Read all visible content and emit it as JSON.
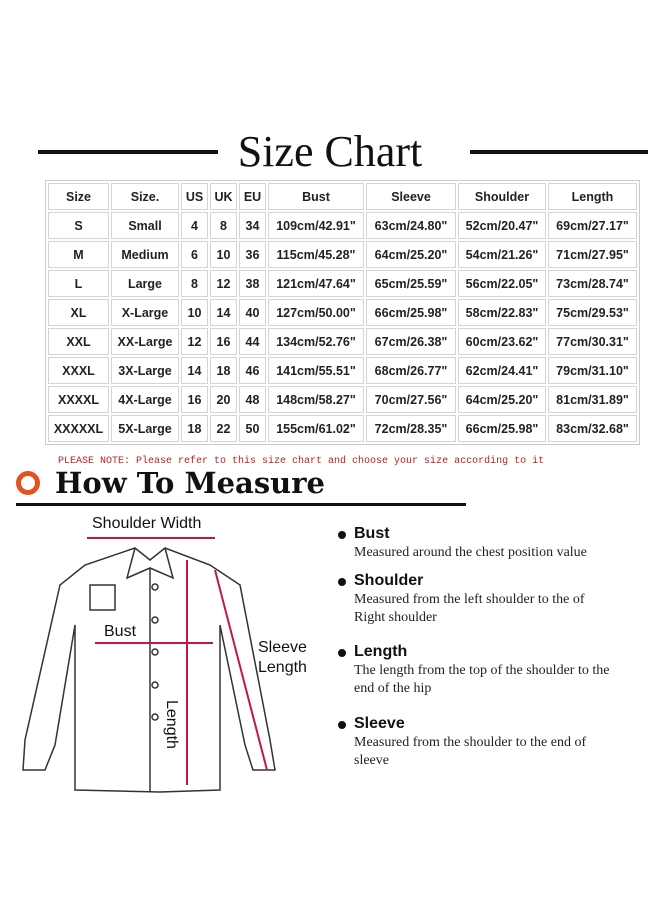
{
  "title": "Size Chart",
  "table": {
    "headers": [
      "Size",
      "Size.",
      "US",
      "UK",
      "EU",
      "Bust",
      "Sleeve",
      "Shoulder",
      "Length"
    ],
    "rows": [
      [
        "S",
        "Small",
        "4",
        "8",
        "34",
        "109cm/42.91\"",
        "63cm/24.80\"",
        "52cm/20.47\"",
        "69cm/27.17\""
      ],
      [
        "M",
        "Medium",
        "6",
        "10",
        "36",
        "115cm/45.28\"",
        "64cm/25.20\"",
        "54cm/21.26\"",
        "71cm/27.95\""
      ],
      [
        "L",
        "Large",
        "8",
        "12",
        "38",
        "121cm/47.64\"",
        "65cm/25.59\"",
        "56cm/22.05\"",
        "73cm/28.74\""
      ],
      [
        "XL",
        "X-Large",
        "10",
        "14",
        "40",
        "127cm/50.00\"",
        "66cm/25.98\"",
        "58cm/22.83\"",
        "75cm/29.53\""
      ],
      [
        "XXL",
        "XX-Large",
        "12",
        "16",
        "44",
        "134cm/52.76\"",
        "67cm/26.38\"",
        "60cm/23.62\"",
        "77cm/30.31\""
      ],
      [
        "XXXL",
        "3X-Large",
        "14",
        "18",
        "46",
        "141cm/55.51\"",
        "68cm/26.77\"",
        "62cm/24.41\"",
        "79cm/31.10\""
      ],
      [
        "XXXXL",
        "4X-Large",
        "16",
        "20",
        "48",
        "148cm/58.27\"",
        "70cm/27.56\"",
        "64cm/25.20\"",
        "81cm/31.89\""
      ],
      [
        "XXXXXL",
        "5X-Large",
        "18",
        "22",
        "50",
        "155cm/61.02\"",
        "72cm/28.35\"",
        "66cm/25.98\"",
        "83cm/32.68\""
      ]
    ]
  },
  "note": "PLEASE NOTE: Please refer to this size chart and choose your size according to it",
  "how_title": "How To Measure",
  "diagram": {
    "shoulder_width": "Shoulder Width",
    "bust": "Bust",
    "sleeve": "Sleeve",
    "sleeve2": "Length",
    "length": "Length"
  },
  "measures": [
    {
      "title": "Bust",
      "desc": "Measured around the chest position value"
    },
    {
      "title": "Shoulder",
      "desc": "Measured from the left shoulder to the of Right shoulder"
    },
    {
      "title": "Length",
      "desc": "The length from the top of the shoulder to the end of the hip"
    },
    {
      "title": "Sleeve",
      "desc": "Measured from the shoulder to the end of sleeve"
    }
  ],
  "colors": {
    "accent": "#e8501c",
    "measure_line": "#c0184a",
    "note": "#bb2222"
  }
}
